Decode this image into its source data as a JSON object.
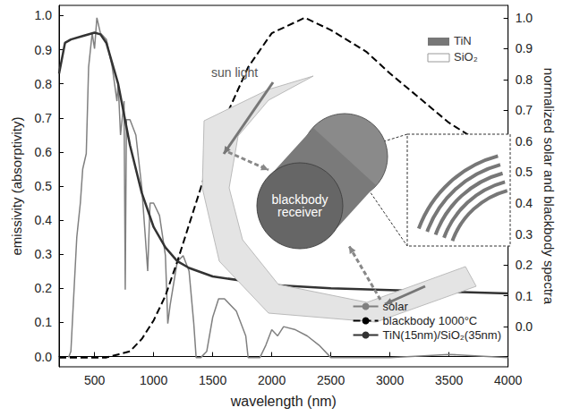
{
  "chart_data": {
    "type": "line",
    "x_label": "wavelength (nm)",
    "y_label": "emissivity (absorptivity)",
    "y2_label": "normalized solar and blackbody spectra",
    "xlim": [
      200,
      4000
    ],
    "xticks": [
      500,
      1000,
      1500,
      2000,
      2500,
      3000,
      3500,
      4000
    ],
    "ylim": [
      -0.03,
      1.03
    ],
    "yticks": [
      {
        "value": 0,
        "label": "0.0"
      },
      {
        "value": 0.1,
        "label": "0.1"
      },
      {
        "value": 0.2,
        "label": "0.2"
      },
      {
        "value": 0.3,
        "label": "0.3"
      },
      {
        "value": 0.4,
        "label": "0.4"
      },
      {
        "value": 0.5,
        "label": "0.5"
      },
      {
        "value": 0.6,
        "label": "0.6"
      },
      {
        "value": 0.7,
        "label": "0.7"
      },
      {
        "value": 0.8,
        "label": "0.8"
      },
      {
        "value": 0.9,
        "label": "0.9"
      },
      {
        "value": 1,
        "label": "1.0"
      }
    ],
    "y2lim": [
      -0.13,
      1.04
    ],
    "y2ticks": [
      {
        "value": 0,
        "label": "0.0"
      },
      {
        "value": 0.1,
        "label": "0.1"
      },
      {
        "value": 0.2,
        "label": "0.2"
      },
      {
        "value": 0.3,
        "label": "0.3"
      },
      {
        "value": 0.4,
        "label": "0.4"
      },
      {
        "value": 0.5,
        "label": "0.5"
      },
      {
        "value": 0.6,
        "label": "0.6"
      },
      {
        "value": 0.7,
        "label": "0.7"
      },
      {
        "value": 0.8,
        "label": "0.8"
      },
      {
        "value": 0.9,
        "label": "0.9"
      },
      {
        "value": 1,
        "label": "1.0"
      }
    ],
    "grid": false,
    "legend": "lower right",
    "annotations": [
      "sun light",
      "blackbody receiver",
      "TiN",
      "SiO₂"
    ],
    "series": [
      {
        "name": "solar",
        "color": "#808080",
        "line_style": "solid",
        "axis": "y2",
        "x": [
          280,
          300,
          320,
          350,
          380,
          400,
          430,
          450,
          480,
          500,
          520,
          550,
          600,
          650,
          690,
          700,
          720,
          750,
          760,
          770,
          800,
          850,
          900,
          930,
          950,
          970,
          1000,
          1050,
          1100,
          1120,
          1140,
          1200,
          1250,
          1300,
          1340,
          1360,
          1400,
          1450,
          1500,
          1550,
          1600,
          1700,
          1780,
          1800,
          1900,
          1950,
          2000,
          2050,
          2100,
          2200,
          2300,
          2400,
          2500,
          2600,
          3000,
          3500,
          4000
        ],
        "values": [
          -0.1,
          -0.08,
          0.07,
          0.29,
          0.4,
          0.51,
          0.56,
          0.84,
          0.95,
          0.9,
          1.0,
          0.95,
          0.93,
          0.84,
          0.73,
          0.79,
          0.62,
          0.73,
          0.12,
          0.67,
          0.67,
          0.62,
          0.45,
          0.29,
          0.18,
          0.4,
          0.4,
          0.36,
          0.23,
          0.01,
          0.07,
          0.21,
          0.23,
          0.18,
          0.01,
          -0.1,
          -0.1,
          -0.08,
          0.03,
          0.09,
          0.09,
          0.05,
          -0.03,
          -0.1,
          -0.1,
          -0.06,
          -0.01,
          -0.03,
          0,
          -0.01,
          -0.03,
          -0.06,
          -0.1,
          -0.1,
          -0.1,
          -0.09,
          -0.1
        ]
      },
      {
        "name": "blackbody 1000°C",
        "color": "#000000",
        "line_style": "dashed",
        "axis": "y2",
        "x": [
          200,
          400,
          600,
          700,
          800,
          900,
          1000,
          1100,
          1200,
          1300,
          1400,
          1500,
          1600,
          1800,
          2000,
          2280,
          2500,
          2800,
          3000,
          3500,
          4000
        ],
        "values": [
          -0.1,
          -0.1,
          -0.1,
          -0.09,
          -0.08,
          -0.04,
          0.02,
          0.1,
          0.21,
          0.33,
          0.45,
          0.57,
          0.67,
          0.84,
          0.95,
          1.0,
          0.96,
          0.89,
          0.82,
          0.66,
          0.54
        ]
      },
      {
        "name": "TiN(15nm)/SiO₂(35nm)",
        "color": "#333333",
        "line_style": "solid",
        "x": [
          200,
          250,
          300,
          400,
          500,
          550,
          600,
          700,
          800,
          900,
          1000,
          1100,
          1200,
          1300,
          1500,
          2000,
          2500,
          3000,
          3500,
          4000
        ],
        "values": [
          0.83,
          0.92,
          0.93,
          0.94,
          0.95,
          0.945,
          0.92,
          0.8,
          0.62,
          0.48,
          0.38,
          0.32,
          0.28,
          0.26,
          0.235,
          0.21,
          0.2,
          0.195,
          0.19,
          0.185
        ]
      }
    ]
  }
}
